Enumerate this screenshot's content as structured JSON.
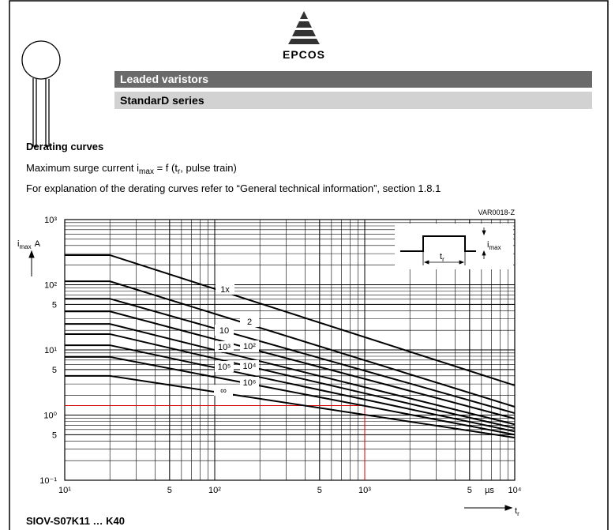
{
  "header": {
    "logo": "EPCOS",
    "bar1": "Leaded varistors",
    "bar2": "StandarD series"
  },
  "heading": "Derating curves",
  "description": [
    {
      "text": "Maximum surge current i"
    },
    {
      "text": "max",
      "sub": true
    },
    {
      "text": " = f (t"
    },
    {
      "text": "r",
      "sub": true
    },
    {
      "text": ", pulse train)"
    }
  ],
  "note": "For explanation of the derating curves refer to “General technical information”, section 1.8.1",
  "footer": "SIOV-S07K11 … K40",
  "chart_data": {
    "type": "line",
    "code": "VAR0018-Z",
    "ylabel": {
      "symbol": "i",
      "subscript": "max",
      "unit": "A"
    },
    "xlabel": {
      "symbol": "t",
      "subscript": "r"
    },
    "xunit": "µs",
    "inset": {
      "width_label": {
        "symbol": "t",
        "subscript": "r"
      },
      "height_label": {
        "symbol": "i",
        "subscript": "max"
      }
    },
    "log_x": true,
    "log_y": true,
    "grid": true,
    "xlim": [
      10,
      10000
    ],
    "ylim": [
      0.1,
      1000
    ],
    "xticks": [
      {
        "value": 10,
        "label": "10¹"
      },
      {
        "value": 50,
        "label": "5"
      },
      {
        "value": 100,
        "label": "10²"
      },
      {
        "value": 500,
        "label": "5"
      },
      {
        "value": 1000,
        "label": "10³"
      },
      {
        "value": 5000,
        "label": "5"
      },
      {
        "value": 10000,
        "label": "10⁴"
      }
    ],
    "yticks": [
      {
        "value": 0.1,
        "label": "10⁻¹"
      },
      {
        "value": 0.5,
        "label": "5"
      },
      {
        "value": 1,
        "label": "10⁰"
      },
      {
        "value": 5,
        "label": "5"
      },
      {
        "value": 10,
        "label": "10¹"
      },
      {
        "value": 50,
        "label": "5"
      },
      {
        "value": 100,
        "label": "10²"
      },
      {
        "value": 1000,
        "label": "10³"
      }
    ],
    "xminor": [
      20,
      30,
      40,
      50,
      60,
      70,
      80,
      90,
      200,
      300,
      400,
      500,
      600,
      700,
      800,
      900,
      2000,
      3000,
      4000,
      5000,
      6000,
      7000,
      8000,
      9000
    ],
    "yminor": [
      0.2,
      0.3,
      0.4,
      0.5,
      0.6,
      0.7,
      0.8,
      0.9,
      2,
      3,
      4,
      5,
      6,
      7,
      8,
      9,
      20,
      30,
      40,
      50,
      60,
      70,
      80,
      90,
      200,
      300,
      400,
      500,
      600,
      700,
      800,
      900
    ],
    "reference": {
      "x": 1000,
      "y": 1.4,
      "color": "#d40000"
    },
    "x": [
      10,
      20,
      10000
    ],
    "series": [
      {
        "name": "1x",
        "color": "#000000",
        "values": [
          285,
          285,
          2.85
        ]
      },
      {
        "name": "2",
        "color": "#000000",
        "values": [
          113,
          113,
          1.34
        ]
      },
      {
        "name": "10",
        "color": "#000000",
        "values": [
          61,
          61,
          1.07
        ]
      },
      {
        "name": "10²",
        "color": "#000000",
        "values": [
          39,
          39,
          0.88
        ]
      },
      {
        "name": "10³",
        "color": "#000000",
        "values": [
          25,
          25,
          0.72
        ]
      },
      {
        "name": "10⁴",
        "color": "#000000",
        "values": [
          17.5,
          17.5,
          0.63
        ]
      },
      {
        "name": "10⁵",
        "color": "#000000",
        "values": [
          11.8,
          11.8,
          0.56
        ]
      },
      {
        "name": "10⁶",
        "color": "#000000",
        "values": [
          7.8,
          7.8,
          0.5
        ]
      },
      {
        "name": "∞",
        "color": "#000000",
        "values": [
          4,
          4,
          0.45
        ]
      }
    ]
  }
}
